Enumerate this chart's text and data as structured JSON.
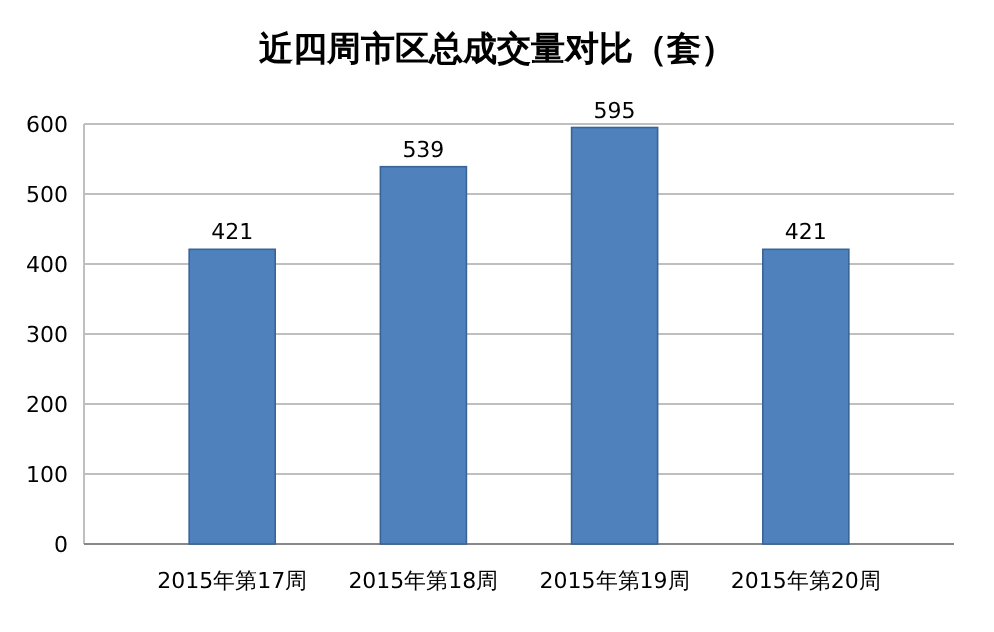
{
  "chart_data": {
    "type": "bar",
    "title": "近四周市区总成交量对比（套）",
    "categories": [
      "2015年第17周",
      "2015年第18周",
      "2015年第19周",
      "2015年第20周"
    ],
    "values": [
      421,
      539,
      595,
      421
    ],
    "color": "#4f81bd",
    "ylim": [
      0,
      600
    ],
    "yticks": [
      0,
      100,
      200,
      300,
      400,
      500,
      600
    ],
    "grid": "y",
    "data_labels": true
  }
}
